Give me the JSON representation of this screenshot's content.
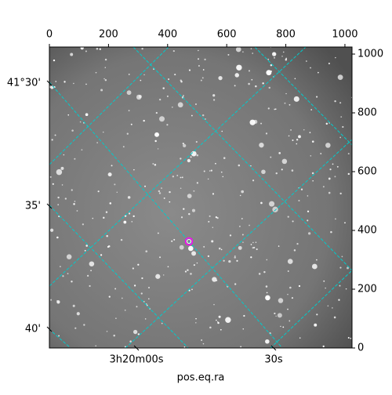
{
  "chart_data": {
    "type": "image",
    "xlabel": "pos.eq.ra",
    "xlim": [
      0,
      1024
    ],
    "xticks": [
      0,
      200,
      400,
      600,
      800,
      1000
    ],
    "ylim": [
      0,
      1024
    ],
    "yticks": [
      0,
      200,
      400,
      600,
      800,
      1000
    ],
    "dec_tick_labels": [
      "41°30'",
      "35'",
      "40'"
    ],
    "ra_tick_labels": [
      "3h20m00s",
      "30s"
    ],
    "grid_color": "#00cccc",
    "marker_color": "#ff00ff"
  }
}
